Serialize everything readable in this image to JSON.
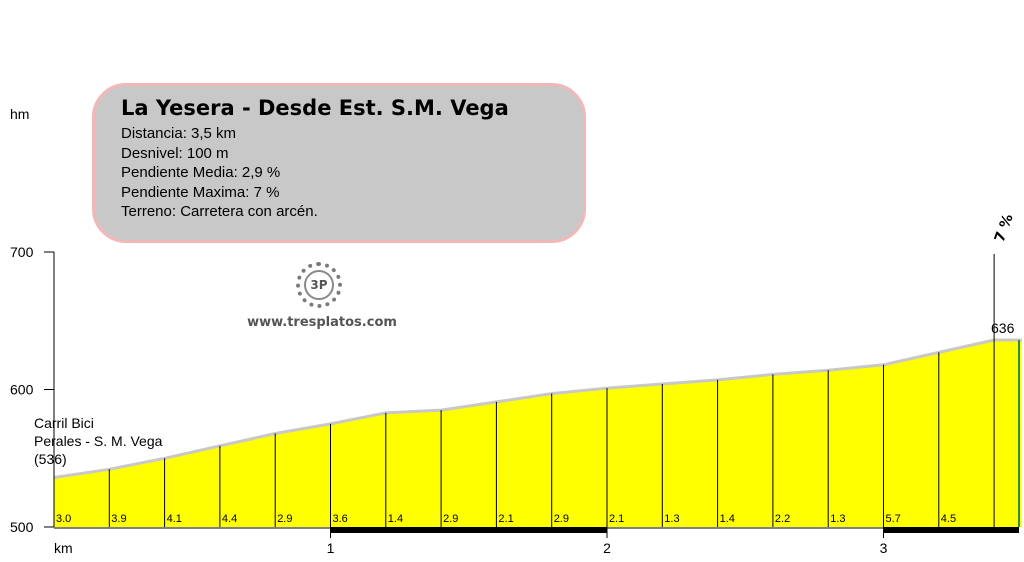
{
  "info": {
    "title": "La Yesera - Desde Est. S.M. Vega",
    "lines": [
      "Distancia: 3,5 km",
      "Desnivel: 100 m",
      "Pendiente Media: 2,9 %",
      "Pendiente Maxima: 7 %",
      "Terreno: Carretera con arcén."
    ]
  },
  "logo": {
    "mark": "3P",
    "url": "www.tresplatos.com",
    "icon": "chainring-icon"
  },
  "colors": {
    "fill": "#ffff00",
    "border": "#c8c8c8",
    "box_bg": "#c8c8c8",
    "box_border": "#f2b8b8",
    "last_seg": "#2e8b57"
  },
  "chart_data": {
    "type": "area",
    "ylabel": "hm",
    "xlabel": "km",
    "ylim": [
      500,
      700
    ],
    "yticks": [
      500,
      600,
      700
    ],
    "xlim": [
      0,
      3.5
    ],
    "xticks": [
      1,
      2,
      3
    ],
    "x": [
      0,
      0.2,
      0.4,
      0.6,
      0.8,
      1.0,
      1.2,
      1.4,
      1.6,
      1.8,
      2.0,
      2.2,
      2.4,
      2.6,
      2.8,
      3.0,
      3.2,
      3.4,
      3.5
    ],
    "y": [
      536,
      542,
      550,
      559,
      568,
      575,
      583,
      585,
      591,
      597,
      601,
      604,
      607,
      611,
      614,
      618,
      627,
      636,
      636
    ],
    "segment_gradients": [
      "3.0",
      "3.9",
      "4.1",
      "4.4",
      "2.9",
      "3.6",
      "1.4",
      "2.9",
      "2.1",
      "2.9",
      "2.1",
      "1.3",
      "1.4",
      "2.2",
      "1.3",
      "5.7",
      "4.5"
    ],
    "start_label": [
      "Carril Bici",
      "Perales - S. M. Vega",
      "(536)"
    ],
    "end_label": "636",
    "max_gradient_label": "7 %",
    "max_gradient_x": 3.4
  }
}
